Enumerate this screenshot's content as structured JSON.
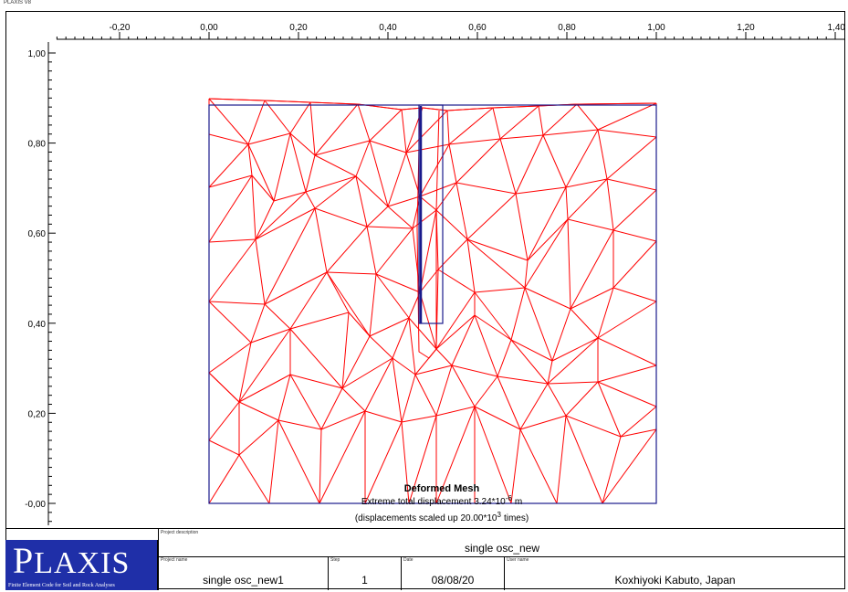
{
  "version_label": "PLAXIS V8",
  "axes": {
    "x_ticks": [
      "-0,20",
      "0,00",
      "0,20",
      "0,40",
      "0,60",
      "0,80",
      "1,00",
      "1,20",
      "1,40"
    ],
    "y_ticks": [
      "1,00",
      "0,80",
      "0,60",
      "0,40",
      "0,20",
      "-0,00"
    ]
  },
  "plot": {
    "title": "Deformed Mesh",
    "displacement_prefix": "Extreme total displacement 3.24*10",
    "displacement_exp": "-6",
    "displacement_unit": "m",
    "scale_prefix": "(displacements scaled up 20.00*10",
    "scale_exp": "3",
    "scale_suffix": "times)",
    "colors": {
      "mesh": "#ff0000",
      "boundary": "#1a1a8c"
    }
  },
  "logo": {
    "first_letter": "P",
    "rest": "LAXIS",
    "subtitle": "Finite Element Code for Soil and Rock Analyses",
    "color": "#1f2fa8"
  },
  "title_block": {
    "project_description_label": "Project description",
    "project_description": "single osc_new",
    "project_name_label": "Project name",
    "project_name": "single osc_new1",
    "step_label": "Step",
    "step": "1",
    "date_label": "Date",
    "date": "08/08/20",
    "user_name_label": "User name",
    "user_name": "Koxhiyoki Kabuto, Japan"
  }
}
